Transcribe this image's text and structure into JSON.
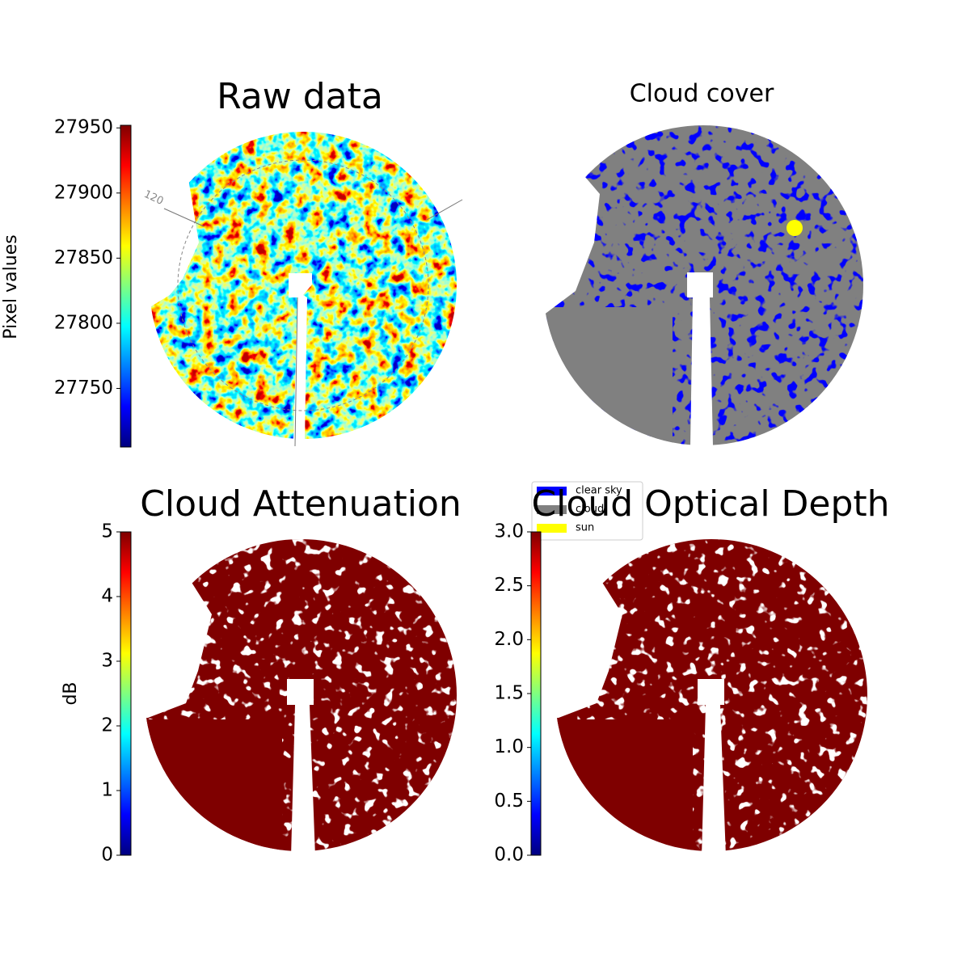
{
  "chart_data": [
    {
      "type": "image",
      "title": "Raw data",
      "colorbar_label": "Pixel values",
      "colormap": "jet",
      "clim": [
        27705,
        27952
      ],
      "ticks": [
        27750,
        27800,
        27850,
        27900,
        27950
      ],
      "annotation": "120"
    },
    {
      "type": "classification",
      "title": "Cloud cover",
      "legend": [
        {
          "name": "clear sky",
          "color": "#0000ff"
        },
        {
          "name": "cloud",
          "color": "#808080"
        },
        {
          "name": "sun",
          "color": "#ffff00"
        }
      ]
    },
    {
      "type": "image",
      "title": "Cloud Attenuation",
      "colorbar_label": "dB",
      "colormap": "jet",
      "clim": [
        0,
        5
      ],
      "ticks": [
        0,
        1,
        2,
        3,
        4,
        5
      ]
    },
    {
      "type": "image",
      "title": "Cloud Optical Depth",
      "colormap": "jet",
      "clim": [
        0,
        3
      ],
      "ticks": [
        {
          "value": 0,
          "label": "0.0"
        },
        0.5,
        {
          "value": 1,
          "label": "1.0"
        },
        1.5,
        {
          "value": 2,
          "label": "2.0"
        },
        2.5,
        {
          "value": 3,
          "label": "3.0"
        }
      ]
    }
  ]
}
